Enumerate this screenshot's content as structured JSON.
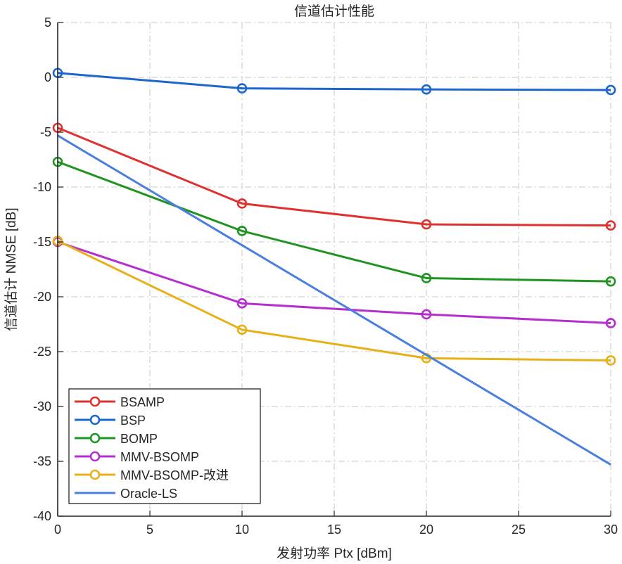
{
  "chart_data": {
    "type": "line",
    "title": "信道估计性能",
    "xlabel": "发射功率 Ptx [dBm]",
    "ylabel": "信道估计 NMSE [dB]",
    "xlim": [
      0,
      30
    ],
    "ylim": [
      -40,
      5
    ],
    "xticks": [
      0,
      5,
      10,
      15,
      20,
      25,
      30
    ],
    "yticks": [
      5,
      0,
      -5,
      -10,
      -15,
      -20,
      -25,
      -30,
      -35,
      -40
    ],
    "grid": true,
    "legend_position": "bottom-left",
    "x": [
      0,
      10,
      20,
      30
    ],
    "series": [
      {
        "name": "BSAMP",
        "color": "#e03131",
        "marker": "circle",
        "values": [
          -4.6,
          -11.5,
          -13.4,
          -13.5
        ]
      },
      {
        "name": "BSP",
        "color": "#1c66cc",
        "marker": "circle",
        "values": [
          0.4,
          -1.0,
          -1.1,
          -1.15
        ]
      },
      {
        "name": "BOMP",
        "color": "#1f9420",
        "marker": "circle",
        "values": [
          -7.7,
          -14.0,
          -18.3,
          -18.6
        ]
      },
      {
        "name": "MMV-BSOMP",
        "color": "#b52fcf",
        "marker": "circle",
        "values": [
          -15.0,
          -20.6,
          -21.6,
          -22.4
        ]
      },
      {
        "name": "MMV-BSOMP-改进",
        "color": "#e8b017",
        "marker": "circle",
        "values": [
          -14.9,
          -23.0,
          -25.6,
          -25.8
        ]
      },
      {
        "name": "Oracle-LS",
        "color": "#4a7fe0",
        "marker": "none",
        "values": [
          -5.3,
          -15.3,
          -25.3,
          -35.3
        ]
      }
    ]
  }
}
